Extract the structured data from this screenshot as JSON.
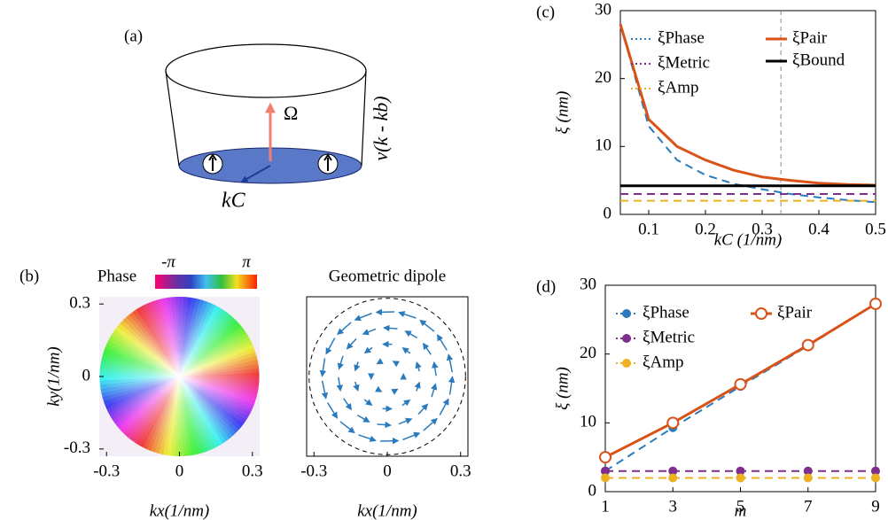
{
  "diagram": {
    "panel": "(a)",
    "omega": "Ω",
    "side": "ν(k - kb)",
    "kc": "kC"
  },
  "chart_data": [
    {
      "type": "phase-map",
      "panel": "(b)",
      "title": "Phase",
      "colorbar_labels": [
        "-π",
        "π"
      ],
      "xlabel": "kx(1/nm)",
      "ylabel": "ky(1/nm)",
      "xlim": [
        -0.33,
        0.33
      ],
      "ylim": [
        -0.33,
        0.33
      ],
      "xticks": [
        -0.3,
        0,
        0.3
      ],
      "yticks": [
        -0.3,
        0,
        0.3
      ]
    },
    {
      "type": "vector-field",
      "title": "Geometric dipole",
      "xlabel": "kx(1/nm)",
      "xlim": [
        -0.33,
        0.33
      ],
      "ylim": [
        -0.33,
        0.33
      ],
      "xticks": [
        -0.3,
        0,
        0.3
      ],
      "color": "#2a7bbd"
    },
    {
      "type": "line",
      "panel": "(c)",
      "xlabel": "kC (1/nm)",
      "ylabel": "ξ (nm)",
      "xlim": [
        0.05,
        0.5
      ],
      "ylim": [
        0,
        30
      ],
      "xticks": [
        0.1,
        0.2,
        0.3,
        0.4,
        0.5
      ],
      "yticks": [
        0,
        10,
        20,
        30
      ],
      "vline": 0.333,
      "x": [
        0.05,
        0.1,
        0.15,
        0.2,
        0.25,
        0.3,
        0.35,
        0.4,
        0.45,
        0.5
      ],
      "series": [
        {
          "name": "ξPhase",
          "color": "#2a7bbd",
          "style": "dashed",
          "values": [
            28,
            13,
            8,
            5.8,
            4.5,
            3.7,
            3.0,
            2.5,
            2.1,
            1.8
          ]
        },
        {
          "name": "ξMetric",
          "color": "#7e2f8e",
          "style": "dashed",
          "values": [
            3,
            3,
            3,
            3,
            3,
            3,
            3,
            3,
            3,
            3
          ]
        },
        {
          "name": "ξAmp",
          "color": "#edb120",
          "style": "dashed",
          "values": [
            2,
            2,
            2,
            2,
            2,
            2,
            2,
            2,
            2,
            2
          ]
        },
        {
          "name": "ξPair",
          "color": "#d95319",
          "style": "solid",
          "values": [
            28,
            14,
            10,
            8,
            6.5,
            5.5,
            5,
            4.6,
            4.4,
            4.3
          ]
        },
        {
          "name": "ξBound",
          "color": "#000000",
          "style": "solid",
          "values": [
            4.2,
            4.2,
            4.2,
            4.2,
            4.2,
            4.2,
            4.2,
            4.2,
            4.2,
            4.2
          ]
        }
      ]
    },
    {
      "type": "line",
      "panel": "(d)",
      "xlabel": "m",
      "ylabel": "ξ (nm)",
      "xlim": [
        1,
        9
      ],
      "ylim": [
        0,
        30
      ],
      "xticks": [
        1,
        3,
        5,
        7,
        9
      ],
      "yticks": [
        0,
        10,
        20,
        30
      ],
      "x": [
        1,
        3,
        5,
        7,
        9
      ],
      "series": [
        {
          "name": "ξPhase",
          "color": "#2a7bbd",
          "style": "dashed",
          "marker": "filled",
          "values": [
            3,
            9.3,
            15.3,
            21.2,
            27.3
          ]
        },
        {
          "name": "ξMetric",
          "color": "#7e2f8e",
          "style": "dashed",
          "marker": "filled",
          "values": [
            3,
            3,
            3,
            3,
            3
          ]
        },
        {
          "name": "ξAmp",
          "color": "#edb120",
          "style": "dashed",
          "marker": "filled",
          "values": [
            2,
            2,
            2,
            2,
            2
          ]
        },
        {
          "name": "ξPair",
          "color": "#d95319",
          "style": "solid",
          "marker": "open",
          "values": [
            5,
            10,
            15.6,
            21.3,
            27.3
          ]
        }
      ]
    }
  ]
}
